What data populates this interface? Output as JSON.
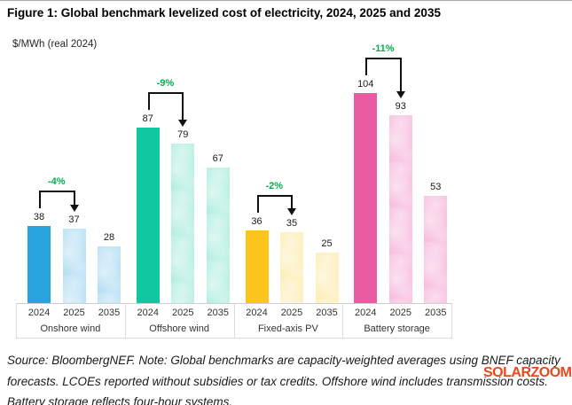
{
  "figure": {
    "title": "Figure 1: Global benchmark levelized cost of electricity, 2024, 2025 and 2035",
    "unit_label": "$/MWh (real 2024)",
    "note_lines": [
      "Source: BloombergNEF. Note: Global benchmarks are capacity-weighted averages using BNEF capacity",
      "forecasts. LCOEs reported without subsidies or tax credits. Offshore wind includes transmission costs.",
      "Battery storage reflects four-hour systems."
    ],
    "watermark": "SOLARZOOM",
    "watermark_color": "#e8491c"
  },
  "chart_data": {
    "type": "bar",
    "title": "Figure 1: Global benchmark levelized cost of electricity, 2024, 2025 and 2035",
    "ylabel": "$/MWh (real 2024)",
    "xlabel": "",
    "categories": [
      "2024",
      "2025",
      "2035"
    ],
    "ylim": [
      0,
      115
    ],
    "grid": false,
    "legend": "none",
    "annotation_color": "#00b050",
    "groups": [
      {
        "label": "Onshore wind",
        "values": [
          38,
          37,
          28
        ],
        "pct_change": "-4%",
        "colors": {
          "solid": "#29a3db",
          "light": "#abdaf2"
        }
      },
      {
        "label": "Offshore wind",
        "values": [
          87,
          79,
          67
        ],
        "pct_change": "-9%",
        "colors": {
          "solid": "#0fc7a0",
          "light": "#a8ecdb"
        }
      },
      {
        "label": "Fixed-axis PV",
        "values": [
          36,
          35,
          25
        ],
        "pct_change": "-2%",
        "colors": {
          "solid": "#fcc51e",
          "light": "#fcebad"
        }
      },
      {
        "label": "Battery storage",
        "values": [
          104,
          93,
          53
        ],
        "pct_change": "-11%",
        "colors": {
          "solid": "#e85ca3",
          "light": "#f6b4d9"
        }
      }
    ]
  }
}
